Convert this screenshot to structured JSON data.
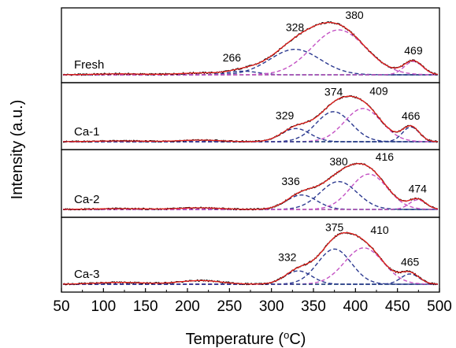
{
  "chart_data": {
    "type": "line",
    "xlabel": "Temperature (oC)",
    "ylabel": "Intensity (a.u.)",
    "xlim": [
      50,
      500
    ],
    "xticks": [
      50,
      100,
      150,
      200,
      250,
      300,
      350,
      400,
      450,
      500
    ],
    "colors": {
      "measured": "#000000",
      "fit": "#e8231f",
      "baseline": "#2ca02c",
      "blue_peak": "#2b3990",
      "magenta_peak": "#c452c4"
    },
    "panels": [
      {
        "label": "Fresh",
        "baseline_bump": 0.03,
        "peaks": [
          {
            "center": 266,
            "height": 0.06,
            "width": 18,
            "color": "blue_peak",
            "label": "266"
          },
          {
            "center": 328,
            "height": 0.42,
            "width": 30,
            "color": "blue_peak",
            "label": "328"
          },
          {
            "center": 380,
            "height": 0.74,
            "width": 32,
            "color": "magenta_peak",
            "label": "380"
          },
          {
            "center": 469,
            "height": 0.22,
            "width": 11,
            "color": "magenta_peak",
            "label": "469"
          }
        ]
      },
      {
        "label": "Ca-1",
        "baseline_bump": 0.03,
        "peaks": [
          {
            "center": 329,
            "height": 0.25,
            "width": 17,
            "color": "blue_peak",
            "label": "329"
          },
          {
            "center": 374,
            "height": 0.57,
            "width": 21,
            "color": "blue_peak",
            "label": "374"
          },
          {
            "center": 409,
            "height": 0.63,
            "width": 22,
            "color": "magenta_peak",
            "label": "409"
          },
          {
            "center": 466,
            "height": 0.28,
            "width": 10,
            "color": "blue_peak",
            "label": "466"
          }
        ]
      },
      {
        "label": "Ca-2",
        "baseline_bump": 0.03,
        "peaks": [
          {
            "center": 336,
            "height": 0.27,
            "width": 18,
            "color": "blue_peak",
            "label": "336"
          },
          {
            "center": 380,
            "height": 0.52,
            "width": 22,
            "color": "blue_peak",
            "label": "380"
          },
          {
            "center": 416,
            "height": 0.66,
            "width": 22,
            "color": "magenta_peak",
            "label": "416"
          },
          {
            "center": 474,
            "height": 0.18,
            "width": 10,
            "color": "magenta_peak",
            "label": "474"
          }
        ]
      },
      {
        "label": "Ca-3",
        "baseline_bump": 0.06,
        "peaks": [
          {
            "center": 332,
            "height": 0.22,
            "width": 16,
            "color": "blue_peak",
            "label": "332"
          },
          {
            "center": 375,
            "height": 0.58,
            "width": 20,
            "color": "blue_peak",
            "label": "375"
          },
          {
            "center": 410,
            "height": 0.6,
            "width": 23,
            "color": "magenta_peak",
            "label": "410"
          },
          {
            "center": 465,
            "height": 0.17,
            "width": 11,
            "color": "blue_peak",
            "label": "465"
          }
        ]
      }
    ]
  }
}
